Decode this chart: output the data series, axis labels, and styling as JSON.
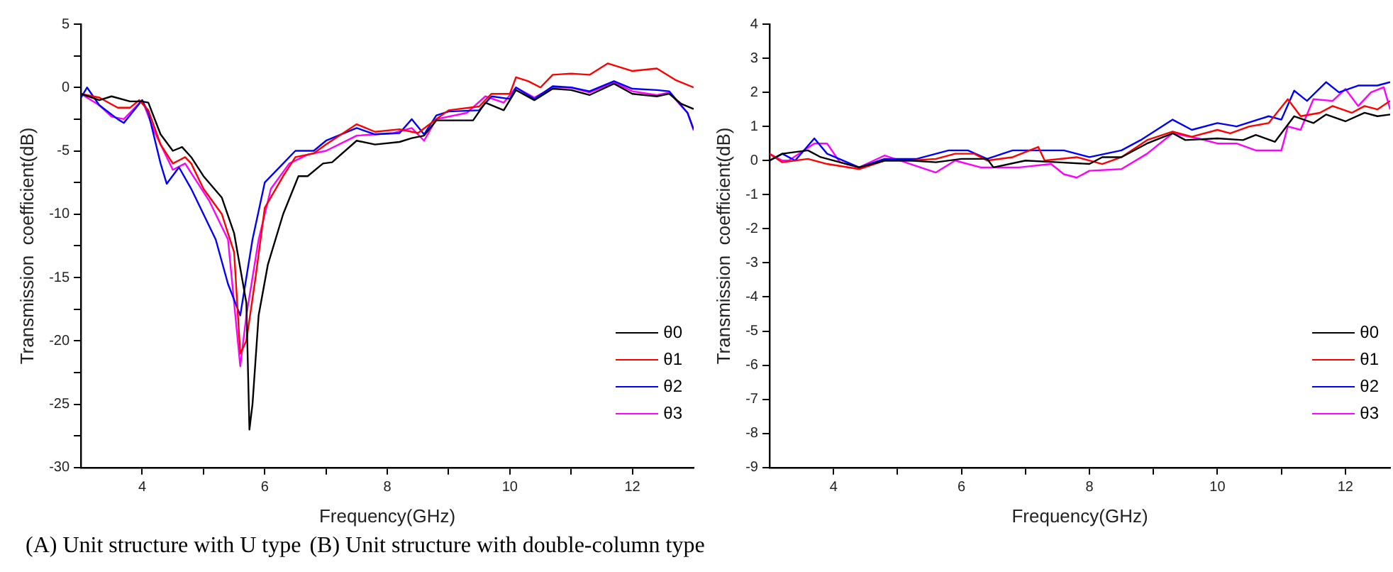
{
  "chart_data": [
    {
      "type": "line",
      "xlabel": "Frequency(GHz)",
      "ylabel": "Transmission  coefficient(dB)",
      "xlim": [
        3,
        13
      ],
      "ylim": [
        -30,
        5
      ],
      "xticks": [
        4,
        {
          "value": 5,
          "label": null
        },
        6,
        {
          "value": 7,
          "label": null
        },
        8,
        {
          "value": 9,
          "label": null
        },
        10,
        {
          "value": 11,
          "label": null
        },
        12
      ],
      "yticks": [
        -30,
        {
          "value": -27.5,
          "label": null
        },
        -25,
        {
          "value": -22.5,
          "label": null
        },
        -20,
        {
          "value": -17.5,
          "label": null
        },
        -15,
        {
          "value": -12.5,
          "label": null
        },
        -10,
        {
          "value": -7.5,
          "label": null
        },
        -5,
        {
          "value": -2.5,
          "label": null
        },
        0,
        {
          "value": 2.5,
          "label": null
        },
        5
      ],
      "grid": false,
      "legend": "bottom right",
      "marker": "none",
      "line_style": "solid",
      "annotations": [
        "(A) Unit structure with U type"
      ],
      "series": [
        {
          "name": "θ0",
          "color": "#000000",
          "x": [
            3,
            3.3,
            3.5,
            3.8,
            4,
            4.1,
            4.3,
            4.5,
            4.65,
            4.8,
            5,
            5.3,
            5.5,
            5.7,
            5.75,
            5.8,
            5.9,
            6.05,
            6.3,
            6.55,
            6.7,
            6.95,
            7.1,
            7.5,
            7.8,
            8.2,
            8.4,
            8.6,
            8.8,
            9.4,
            9.6,
            9.9,
            10.1,
            10.4,
            10.7,
            11,
            11.3,
            11.7,
            12,
            12.4,
            12.6,
            12.8,
            13
          ],
          "values": [
            -0.5,
            -1,
            -0.7,
            -1.1,
            -1.1,
            -1.2,
            -3.7,
            -5,
            -4.7,
            -5.5,
            -7,
            -8.7,
            -11.5,
            -17,
            -27,
            -25,
            -18,
            -14,
            -10,
            -7,
            -7,
            -6,
            -5.9,
            -4.2,
            -4.5,
            -4.3,
            -4,
            -3.8,
            -2.6,
            -2.6,
            -1.2,
            -1.8,
            -0.2,
            -1,
            -0.1,
            -0.2,
            -0.6,
            0.3,
            -0.5,
            -0.7,
            -0.5,
            -1.3,
            -1.7
          ]
        },
        {
          "name": "θ1",
          "color": "#ff0000",
          "x": [
            3,
            3.3,
            3.6,
            3.8,
            3.95,
            4.1,
            4.3,
            4.5,
            4.7,
            4.8,
            5,
            5.3,
            5.5,
            5.6,
            5.7,
            5.85,
            6,
            6.3,
            6.5,
            6.8,
            7,
            7.5,
            7.8,
            8.2,
            8.5,
            8.8,
            9,
            9.5,
            9.7,
            10,
            10.1,
            10.3,
            10.5,
            10.7,
            11,
            11.3,
            11.6,
            12,
            12.4,
            12.7,
            13
          ],
          "values": [
            -0.5,
            -0.8,
            -1.6,
            -1.6,
            -1,
            -1.8,
            -4.5,
            -6,
            -5.5,
            -6,
            -8,
            -10,
            -13,
            -21,
            -20,
            -15,
            -9.5,
            -7,
            -5.5,
            -5.2,
            -4.5,
            -2.9,
            -3.5,
            -3.3,
            -3.6,
            -2.5,
            -1.8,
            -1.5,
            -0.5,
            -0.5,
            0.8,
            0.5,
            0,
            1,
            1.1,
            1,
            1.9,
            1.3,
            1.5,
            0.6,
            0
          ]
        },
        {
          "name": "θ2",
          "color": "#0000ff",
          "x": [
            3,
            3.1,
            3.3,
            3.6,
            3.7,
            4,
            4.1,
            4.3,
            4.4,
            4.6,
            4.8,
            5,
            5.2,
            5.4,
            5.6,
            5.65,
            5.8,
            6,
            6.3,
            6.5,
            6.8,
            7,
            7.5,
            7.8,
            8.2,
            8.4,
            8.6,
            8.8,
            9,
            9.5,
            9.7,
            10,
            10.1,
            10.4,
            10.7,
            11,
            11.3,
            11.7,
            12,
            12.4,
            12.6,
            12.9,
            13
          ],
          "values": [
            -0.8,
            0,
            -1.4,
            -2.5,
            -2.8,
            -1,
            -2,
            -6,
            -7.6,
            -6.3,
            -8,
            -10,
            -12,
            -15.5,
            -18,
            -16.5,
            -12,
            -7.5,
            -6,
            -5,
            -5,
            -4.2,
            -3.2,
            -3.7,
            -3.6,
            -2.5,
            -3.7,
            -2.2,
            -1.9,
            -1.8,
            -0.7,
            -0.9,
            0,
            -0.9,
            0.1,
            0,
            -0.3,
            0.5,
            -0.1,
            -0.2,
            -0.3,
            -2,
            -3.3
          ]
        },
        {
          "name": "θ3",
          "color": "#ff00ff",
          "x": [
            3,
            3.3,
            3.5,
            3.7,
            4,
            4.2,
            4.5,
            4.7,
            4.9,
            5.1,
            5.4,
            5.6,
            5.7,
            5.9,
            6.1,
            6.4,
            6.7,
            7,
            7.5,
            8.1,
            8.4,
            8.6,
            8.8,
            9.3,
            9.6,
            9.9,
            10.1,
            10.4,
            10.7,
            11,
            11.3,
            11.7,
            12,
            12.4,
            12.6,
            12.9,
            13
          ],
          "values": [
            -0.5,
            -1.4,
            -2.3,
            -2.5,
            -1,
            -3.5,
            -6.5,
            -6,
            -7.5,
            -9,
            -12,
            -22,
            -18,
            -12,
            -8,
            -6,
            -5.3,
            -5,
            -3.8,
            -3.6,
            -3.2,
            -4.2,
            -2.5,
            -2,
            -0.7,
            -1.2,
            0,
            -0.8,
            0,
            0,
            -0.4,
            0.4,
            -0.3,
            -0.6,
            -0.4,
            -2,
            -3.4
          ]
        }
      ]
    },
    {
      "type": "line",
      "xlabel": "Frequency(GHz)",
      "ylabel": "Transmission  coefficient(dB)",
      "xlim": [
        3,
        12.7
      ],
      "ylim": [
        -9,
        4
      ],
      "xticks": [
        4,
        {
          "value": 5,
          "label": null
        },
        6,
        {
          "value": 7,
          "label": null
        },
        8,
        {
          "value": 9,
          "label": null
        },
        10,
        {
          "value": 11,
          "label": null
        },
        12
      ],
      "yticks": [
        -9,
        -8,
        -7,
        -6,
        -5,
        -4,
        -3,
        -2,
        -1,
        0,
        1,
        2,
        3,
        4
      ],
      "grid": false,
      "legend": "bottom right",
      "marker": "none",
      "line_style": "solid",
      "annotations": [
        "(B) Unit structure with double-column type"
      ],
      "series": [
        {
          "name": "θ0",
          "color": "#000000",
          "x": [
            3,
            3.2,
            3.6,
            3.8,
            4.4,
            4.8,
            5.2,
            5.6,
            6,
            6.4,
            6.5,
            7,
            7.5,
            8,
            8.2,
            8.5,
            8.9,
            9.3,
            9.5,
            10,
            10.4,
            10.6,
            10.9,
            11.2,
            11.5,
            11.7,
            12,
            12.3,
            12.5,
            12.7
          ],
          "values": [
            0,
            0.2,
            0.3,
            0.1,
            -0.2,
            0,
            0,
            -0.05,
            0.05,
            0.05,
            -0.2,
            0,
            -0.05,
            -0.1,
            0.1,
            0.1,
            0.5,
            0.8,
            0.6,
            0.65,
            0.6,
            0.75,
            0.55,
            1.3,
            1.1,
            1.35,
            1.15,
            1.4,
            1.3,
            1.35
          ]
        },
        {
          "name": "θ1",
          "color": "#ff0000",
          "x": [
            3,
            3.2,
            3.6,
            3.9,
            4.4,
            4.8,
            5.2,
            5.6,
            5.9,
            6.2,
            6.4,
            6.8,
            7.2,
            7.3,
            7.8,
            8.2,
            8.5,
            8.9,
            9.3,
            9.6,
            10,
            10.2,
            10.5,
            10.8,
            11.1,
            11.3,
            11.6,
            11.8,
            12.1,
            12.3,
            12.5,
            12.7
          ],
          "values": [
            0.2,
            -0.05,
            0.05,
            -0.1,
            -0.25,
            0,
            0,
            0.05,
            0.2,
            0.2,
            0,
            0.1,
            0.4,
            0,
            0.1,
            -0.1,
            0.1,
            0.6,
            0.85,
            0.7,
            0.9,
            0.8,
            1,
            1.1,
            1.8,
            1.3,
            1.4,
            1.6,
            1.4,
            1.6,
            1.5,
            1.75
          ]
        },
        {
          "name": "θ2",
          "color": "#0000ff",
          "x": [
            3,
            3.2,
            3.4,
            3.7,
            3.9,
            4.4,
            4.8,
            5.3,
            5.8,
            6.1,
            6.4,
            6.8,
            7.3,
            7.6,
            8,
            8.5,
            8.8,
            9.3,
            9.6,
            10,
            10.3,
            10.8,
            11,
            11.2,
            11.4,
            11.7,
            11.9,
            12.2,
            12.5,
            12.7
          ],
          "values": [
            0,
            0.2,
            0,
            0.65,
            0.2,
            -0.2,
            0.05,
            0.05,
            0.3,
            0.3,
            0.05,
            0.3,
            0.3,
            0.3,
            0.1,
            0.3,
            0.6,
            1.2,
            0.9,
            1.1,
            1,
            1.3,
            1.2,
            2.05,
            1.75,
            2.3,
            2,
            2.2,
            2.2,
            2.3
          ]
        },
        {
          "name": "θ3",
          "color": "#ff00ff",
          "x": [
            3,
            3.2,
            3.3,
            3.7,
            3.9,
            4.1,
            4.4,
            4.8,
            5.2,
            5.6,
            5.9,
            6.3,
            6.9,
            7.4,
            7.6,
            7.8,
            8,
            8.5,
            8.9,
            9.3,
            9.7,
            10,
            10.3,
            10.6,
            11,
            11.1,
            11.3,
            11.5,
            11.8,
            12,
            12.2,
            12.4,
            12.6,
            12.7
          ],
          "values": [
            0.2,
            0,
            0,
            0.5,
            0.5,
            -0.05,
            -0.2,
            0.15,
            -0.1,
            -0.35,
            0,
            -0.2,
            -0.2,
            -0.1,
            -0.4,
            -0.5,
            -0.3,
            -0.25,
            0.2,
            0.8,
            0.65,
            0.5,
            0.5,
            0.3,
            0.3,
            1,
            0.9,
            1.8,
            1.75,
            2.1,
            1.6,
            2,
            2.15,
            1.5
          ]
        }
      ]
    }
  ]
}
